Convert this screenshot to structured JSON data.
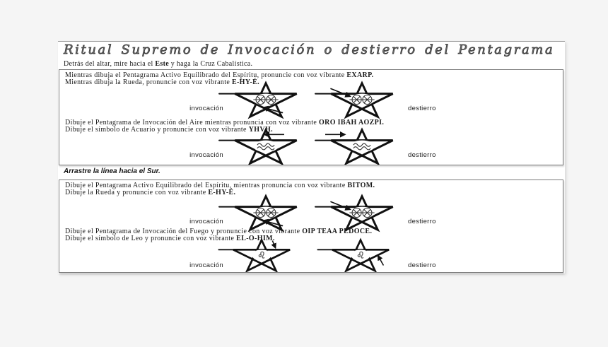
{
  "title": "Ritual Supremo de Invocación o destierro del Pentagrama",
  "intro": [
    {
      "t": "Detrás del altar, mire hacia el ",
      "b": false
    },
    {
      "t": "Este",
      "b": true
    },
    {
      "t": " y haga la Cruz Cabalística.",
      "b": false
    }
  ],
  "divider": "Arrastre la línea hacia el Sur.",
  "labels": {
    "invocacion": "invocación",
    "destierro": "destierro"
  },
  "boxes": [
    {
      "sections": [
        {
          "symbol": "wheel-of-spirit",
          "lines": [
            [
              {
                "t": "Mientras dibuja el Pentagrama Activo Equilibrado del Espíritu, pronuncie con voz vibrante ",
                "b": false
              },
              {
                "t": "EXARP.",
                "b": true
              }
            ],
            [
              {
                "t": "Mientras dibuja la Rueda, pronuncie con voz vibrante ",
                "b": false
              },
              {
                "t": "E-HY-É.",
                "b": true
              }
            ]
          ]
        },
        {
          "symbol": "aquarius",
          "lines": [
            [
              {
                "t": "Dibuje el Pentagrama de Invocación del Aire mientras pronuncia con voz vibrante ",
                "b": false
              },
              {
                "t": "ORO IBAH AOZPI.",
                "b": true
              }
            ],
            [
              {
                "t": "Dibuje el símbolo de Acuario y pronuncie con voz vibrante ",
                "b": false
              },
              {
                "t": "YHVH.",
                "b": true
              }
            ]
          ]
        }
      ]
    },
    {
      "sections": [
        {
          "symbol": "wheel-of-spirit",
          "lines": [
            [
              {
                "t": "Dibuje el Pentagrama Activo Equilibrado del Espíritu, mientras pronuncia con voz vibrante ",
                "b": false
              },
              {
                "t": "BITOM.",
                "b": true
              }
            ],
            [
              {
                "t": "Dibuje la Rueda y pronuncie con voz vibrante ",
                "b": false
              },
              {
                "t": "E-HY-É.",
                "b": true
              }
            ]
          ]
        },
        {
          "symbol": "leo",
          "lines": [
            [
              {
                "t": "Dibuje el Pentagrama de Invocación del Fuego y pronuncie con voz vibrante ",
                "b": false
              },
              {
                "t": "OIP TEAA PEDOCE.",
                "b": true
              }
            ],
            [
              {
                "t": "Dibuje el símbolo de Leo y pronuncie con voz vibrante ",
                "b": false
              },
              {
                "t": "EL-O-HIM.",
                "b": true
              }
            ]
          ]
        }
      ]
    }
  ],
  "colors": {
    "page_bg": "#f5f5f5",
    "content_bg": "#ffffff",
    "box_border": "#7a7a7a",
    "text": "#1a1a1a"
  }
}
